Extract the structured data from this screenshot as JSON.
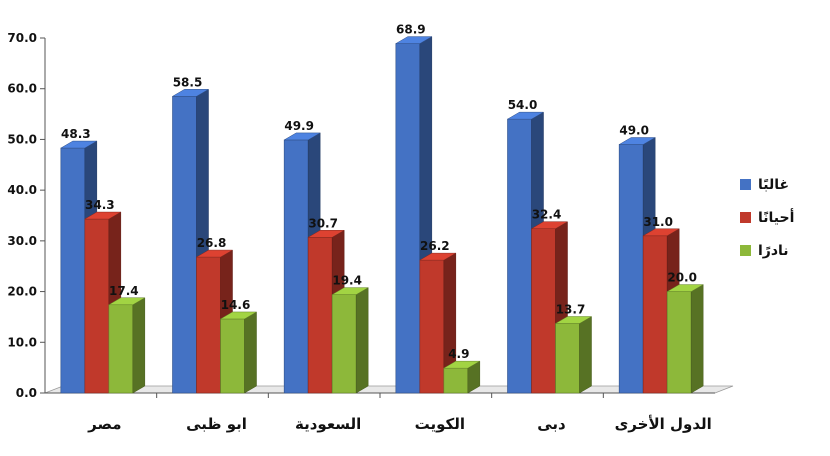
{
  "chart_data": {
    "type": "bar",
    "categories": [
      "مصر",
      "ابو ظبى",
      "السعودية",
      "الكويت",
      "دبى",
      "الدول الأخرى"
    ],
    "series": [
      {
        "name": "غالبًا",
        "color": "#4472C4",
        "values": [
          48.3,
          58.5,
          49.9,
          68.9,
          54.0,
          49.0
        ]
      },
      {
        "name": "أحيانًا",
        "color": "#C0392B",
        "values": [
          34.3,
          26.8,
          30.7,
          26.2,
          32.4,
          31.0
        ]
      },
      {
        "name": "نادرًا",
        "color": "#8DB83A",
        "values": [
          17.4,
          14.6,
          19.4,
          4.9,
          13.7,
          20.0
        ]
      }
    ],
    "data_labels": [
      [
        "48.3",
        "58.5",
        "49.9",
        "68.9",
        "54.0",
        "49.0"
      ],
      [
        "34.3",
        "26.8",
        "30.7",
        "26.2",
        "32.4",
        "31.0"
      ],
      [
        "17.4",
        "14.6",
        "19.4",
        "4.9",
        "13.7",
        "20.0"
      ]
    ],
    "y_ticks": [
      "0.0",
      "10.0",
      "20.0",
      "30.0",
      "40.0",
      "50.0",
      "60.0",
      "70.0"
    ],
    "ylim": [
      0,
      70
    ],
    "legend_position": "right",
    "style": "3d-clustered-bar"
  }
}
